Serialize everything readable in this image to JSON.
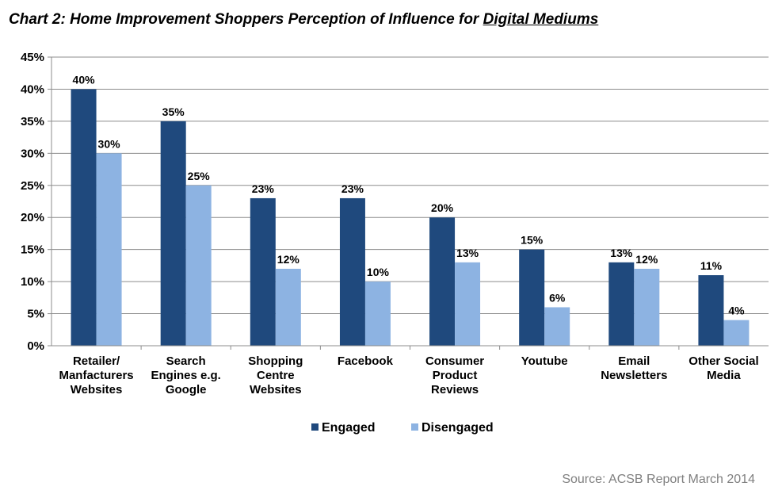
{
  "title": {
    "prefix": "Chart 2: Home Improvement Shoppers Perception of Influence for ",
    "underlined": "Digital Mediums"
  },
  "source": "Source: ACSB Report March 2014",
  "chart_data": {
    "type": "bar",
    "title": "Chart 2: Home Improvement Shoppers Perception of Influence for Digital Mediums",
    "categories": [
      [
        "Retailer/",
        "Manfacturers",
        "Websites"
      ],
      [
        "Search",
        "Engines e.g.",
        "Google"
      ],
      [
        "Shopping",
        "Centre",
        "Websites"
      ],
      [
        "Facebook"
      ],
      [
        "Consumer",
        "Product",
        "Reviews"
      ],
      [
        "Youtube"
      ],
      [
        "Email",
        "Newsletters"
      ],
      [
        "Other Social",
        "Media"
      ]
    ],
    "series": [
      {
        "name": "Engaged",
        "color": "#1f497d",
        "values": [
          40,
          35,
          23,
          23,
          20,
          15,
          13,
          11
        ]
      },
      {
        "name": "Disengaged",
        "color": "#8db3e2",
        "values": [
          30,
          25,
          12,
          10,
          13,
          6,
          12,
          4
        ]
      }
    ],
    "ylim": [
      0,
      45
    ],
    "yticks": [
      0,
      5,
      10,
      15,
      20,
      25,
      30,
      35,
      40,
      45
    ],
    "yformat": "%",
    "grid": true,
    "legend": "bottom"
  }
}
